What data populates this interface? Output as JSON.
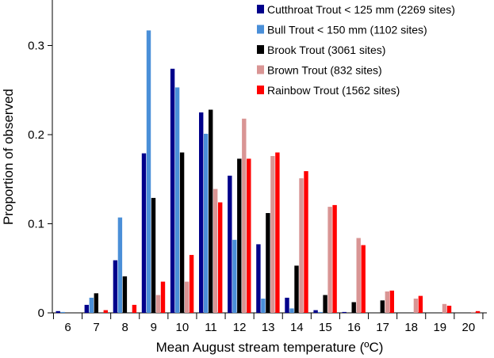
{
  "chart_data": {
    "type": "bar",
    "title": "",
    "xlabel": "Mean August stream temperature (ºC)",
    "ylabel": "Proportion of observed",
    "categories": [
      "6",
      "7",
      "8",
      "9",
      "10",
      "11",
      "12",
      "13",
      "14",
      "15",
      "16",
      "17",
      "18",
      "19",
      "20"
    ],
    "y_ticks": [
      "0",
      "0.1",
      "0.2",
      "0.3"
    ],
    "ylim": [
      0,
      0.35
    ],
    "grid": false,
    "legend_position": "top-right",
    "series": [
      {
        "name": "Cutthroat Trout < 125 mm (2269 sites)",
        "color": "#00008B",
        "values": [
          0.002,
          0.009,
          0.059,
          0.179,
          0.274,
          0.225,
          0.154,
          0.077,
          0.017,
          0.003,
          0.001,
          0,
          0,
          0,
          0
        ]
      },
      {
        "name": "Bull Trout < 150 mm (1102 sites)",
        "color": "#4A8FD8",
        "values": [
          0.001,
          0.017,
          0.107,
          0.317,
          0.253,
          0.201,
          0.082,
          0.016,
          0.005,
          0.001,
          0,
          0,
          0,
          0,
          0
        ]
      },
      {
        "name": "Brook Trout (3061 sites)",
        "color": "#000000",
        "values": [
          0,
          0.022,
          0.041,
          0.129,
          0.18,
          0.228,
          0.173,
          0.112,
          0.053,
          0.02,
          0.012,
          0.014,
          0,
          0,
          0
        ]
      },
      {
        "name": "Brown Trout (832 sites)",
        "color": "#D99594",
        "values": [
          0,
          0,
          0,
          0.02,
          0.035,
          0.139,
          0.218,
          0.176,
          0.151,
          0.119,
          0.084,
          0.024,
          0.016,
          0.01,
          0.001
        ]
      },
      {
        "name": "Rainbow Trout (1562 sites)",
        "color": "#FF0000",
        "values": [
          0,
          0.003,
          0.009,
          0.035,
          0.065,
          0.124,
          0.173,
          0.18,
          0.159,
          0.121,
          0.076,
          0.025,
          0.019,
          0.008,
          0.002
        ]
      }
    ]
  }
}
